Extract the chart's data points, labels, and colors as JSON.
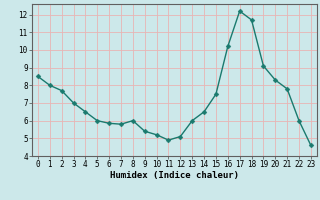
{
  "x": [
    0,
    1,
    2,
    3,
    4,
    5,
    6,
    7,
    8,
    9,
    10,
    11,
    12,
    13,
    14,
    15,
    16,
    17,
    18,
    19,
    20,
    21,
    22,
    23
  ],
  "y": [
    8.5,
    8.0,
    7.7,
    7.0,
    6.5,
    6.0,
    5.85,
    5.8,
    6.0,
    5.4,
    5.2,
    4.9,
    5.1,
    6.0,
    6.5,
    7.5,
    10.2,
    12.2,
    11.7,
    9.1,
    8.3,
    7.8,
    6.0,
    4.6
  ],
  "line_color": "#1a7a6e",
  "marker": "D",
  "markersize": 2.5,
  "bg_color": "#cce8ea",
  "grid_color": "#e8b4b4",
  "xlabel": "Humidex (Indice chaleur)",
  "ylim": [
    4,
    12.6
  ],
  "xlim": [
    -0.5,
    23.5
  ],
  "yticks": [
    4,
    5,
    6,
    7,
    8,
    9,
    10,
    11,
    12
  ],
  "xticks": [
    0,
    1,
    2,
    3,
    4,
    5,
    6,
    7,
    8,
    9,
    10,
    11,
    12,
    13,
    14,
    15,
    16,
    17,
    18,
    19,
    20,
    21,
    22,
    23
  ],
  "xtick_labels": [
    "0",
    "1",
    "2",
    "3",
    "4",
    "5",
    "6",
    "7",
    "8",
    "9",
    "10",
    "11",
    "12",
    "13",
    "14",
    "15",
    "16",
    "17",
    "18",
    "19",
    "20",
    "21",
    "22",
    "23"
  ],
  "linewidth": 1.0,
  "label_fontsize": 6.5,
  "tick_fontsize": 5.5
}
